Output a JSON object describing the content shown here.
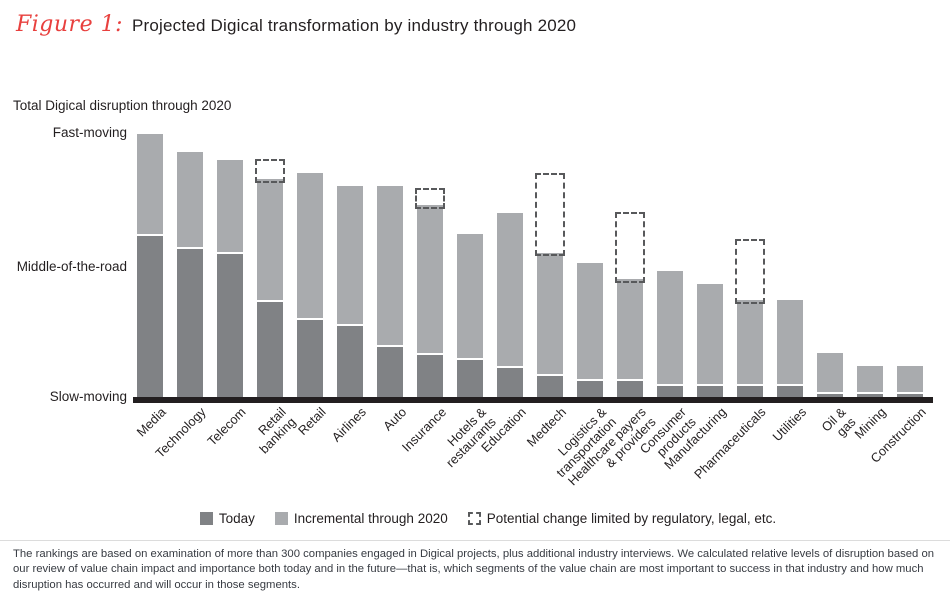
{
  "figure": {
    "label": "Figure 1:",
    "title": "Projected Digical transformation by industry through 2020"
  },
  "chart_data": {
    "type": "bar",
    "stacked": true,
    "axis_title": "Total Digical disruption through 2020",
    "y_axis": {
      "labels": [
        "Fast-moving",
        "Middle-of-the-road",
        "Slow-moving"
      ],
      "label_values": [
        100,
        50,
        0
      ],
      "range": [
        0,
        100
      ],
      "grid": false
    },
    "categories": [
      "Media",
      "Technology",
      "Telecom",
      "Retail\nbanking",
      "Retail",
      "Airlines",
      "Auto",
      "Insurance",
      "Hotels &\nrestaurants",
      "Education",
      "Medtech",
      "Logistics &\ntransportation",
      "Healthcare payers\n& providers",
      "Consumer\nproducts",
      "Manufacturing",
      "Pharmaceuticals",
      "Utilities",
      "Oil &\ngas",
      "Mining",
      "Construction"
    ],
    "series": [
      {
        "name": "Today",
        "color": "#808285",
        "values": [
          61,
          56,
          54,
          36,
          29,
          27,
          19,
          16,
          14,
          11,
          8,
          6,
          6,
          4,
          4,
          4,
          4,
          1,
          1,
          1
        ]
      },
      {
        "name": "Incremental through 2020",
        "color": "#A9ABAE",
        "values": [
          38,
          36,
          35,
          46,
          55,
          52,
          60,
          56,
          47,
          58,
          46,
          44,
          38,
          43,
          38,
          32,
          32,
          15,
          10,
          10
        ]
      },
      {
        "name": "Potential change limited by regulatory, legal, etc.",
        "style": "dashed_outline",
        "color": "#58595B",
        "values": [
          0,
          0,
          0,
          8,
          0,
          0,
          0,
          7,
          0,
          0,
          31,
          0,
          26,
          0,
          0,
          24,
          0,
          0,
          0,
          0
        ]
      }
    ],
    "legend_position": "bottom",
    "baseline_color": "#231F20"
  },
  "legend": {
    "today": "Today",
    "incremental": "Incremental through 2020",
    "potential": "Potential change limited by regulatory, legal, etc."
  },
  "footnote": "The rankings are based on examination of more than 300 companies engaged in Digical projects, plus additional industry interviews. We calculated relative levels of disruption based on our review of value chain impact and importance both today and in the future—that is, which segments of the value chain are most important to success in that industry and how much disruption has occurred and will occur in those segments.",
  "colors": {
    "figure_label_red": "#E8403E",
    "text_dark": "#231F20",
    "footnote_text": "#373B42"
  }
}
